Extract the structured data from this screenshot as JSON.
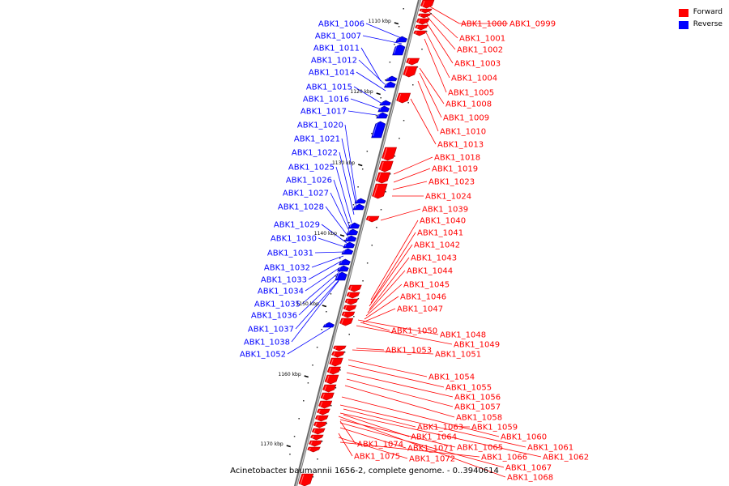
{
  "legend": {
    "forward": {
      "label": "Forward",
      "color": "#ff0000"
    },
    "reverse": {
      "label": "Reverse",
      "color": "#0000ff"
    }
  },
  "caption": "Acinetobacter baumannii 1656-2, complete genome. - 0..3940614",
  "ticks": [
    "1110 kbp",
    "1120 kbp",
    "1130 kbp",
    "1140 kbp",
    "1150 kbp",
    "1160 kbp",
    "1170 kbp"
  ],
  "reverse_genes": [
    "ABK1_1006",
    "ABK1_1007",
    "ABK1_1011",
    "ABK1_1012",
    "ABK1_1014",
    "ABK1_1015",
    "ABK1_1016",
    "ABK1_1017",
    "ABK1_1020",
    "ABK1_1021",
    "ABK1_1022",
    "ABK1_1025",
    "ABK1_1026",
    "ABK1_1027",
    "ABK1_1028",
    "ABK1_1029",
    "ABK1_1030",
    "ABK1_1031",
    "ABK1_1032",
    "ABK1_1033",
    "ABK1_1034",
    "ABK1_1035",
    "ABK1_1036",
    "ABK1_1037",
    "ABK1_1038",
    "ABK1_1052"
  ],
  "forward_genes": [
    "ABK1_1000",
    "ABK1_0999",
    "ABK1_1001",
    "ABK1_1002",
    "ABK1_1003",
    "ABK1_1004",
    "ABK1_1005",
    "ABK1_1008",
    "ABK1_1009",
    "ABK1_1010",
    "ABK1_1013",
    "ABK1_1018",
    "ABK1_1019",
    "ABK1_1023",
    "ABK1_1024",
    "ABK1_1039",
    "ABK1_1040",
    "ABK1_1041",
    "ABK1_1042",
    "ABK1_1043",
    "ABK1_1044",
    "ABK1_1045",
    "ABK1_1046",
    "ABK1_1047",
    "ABK1_1050",
    "ABK1_1048",
    "ABK1_1049",
    "ABK1_1053",
    "ABK1_1051",
    "ABK1_1054",
    "ABK1_1055",
    "ABK1_1056",
    "ABK1_1057",
    "ABK1_1058",
    "ABK1_1063",
    "ABK1_1059",
    "ABK1_1064",
    "ABK1_1060",
    "ABK1_1074",
    "ABK1_1071",
    "ABK1_1065",
    "ABK1_1061",
    "ABK1_1075",
    "ABK1_1072",
    "ABK1_1066",
    "ABK1_1062",
    "ABK1_1067",
    "ABK1_1068"
  ]
}
